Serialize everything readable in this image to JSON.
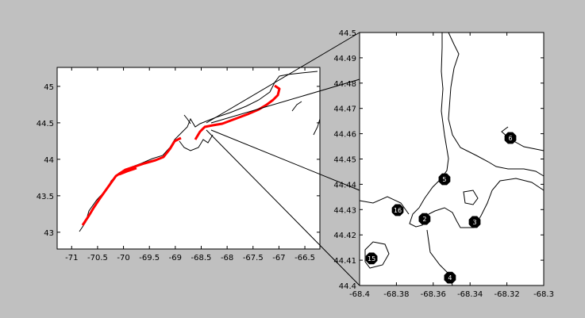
{
  "chart_data": [
    {
      "type": "map",
      "xlim": [
        -71.28,
        -66.21
      ],
      "ylim": [
        42.77,
        45.26
      ],
      "xticks": [
        -71,
        -70.5,
        -70,
        -69.5,
        -69,
        -68.5,
        -68,
        -67.5,
        -67,
        -66.5
      ],
      "yticks": [
        43,
        43.5,
        44,
        44.5,
        45
      ]
    },
    {
      "type": "scatter",
      "xlim": [
        -68.4,
        -68.3
      ],
      "ylim": [
        44.4,
        44.5
      ],
      "xticks": [
        -68.4,
        -68.38,
        -68.36,
        -68.34,
        -68.32,
        -68.3
      ],
      "yticks": [
        44.4,
        44.41,
        44.42,
        44.43,
        44.44,
        44.45,
        44.46,
        44.47,
        44.48,
        44.49,
        44.5
      ],
      "x": [
        -68.3935,
        -68.3793,
        -68.3647,
        -68.3539,
        -68.3509,
        -68.3375,
        -68.3181
      ],
      "values": [
        44.4107,
        44.4298,
        44.4263,
        44.442,
        44.4031,
        44.4251,
        44.4583
      ],
      "point_labels": [
        "15",
        "16",
        "2",
        "5",
        "4",
        "3",
        "6"
      ],
      "color": "#000000"
    }
  ]
}
